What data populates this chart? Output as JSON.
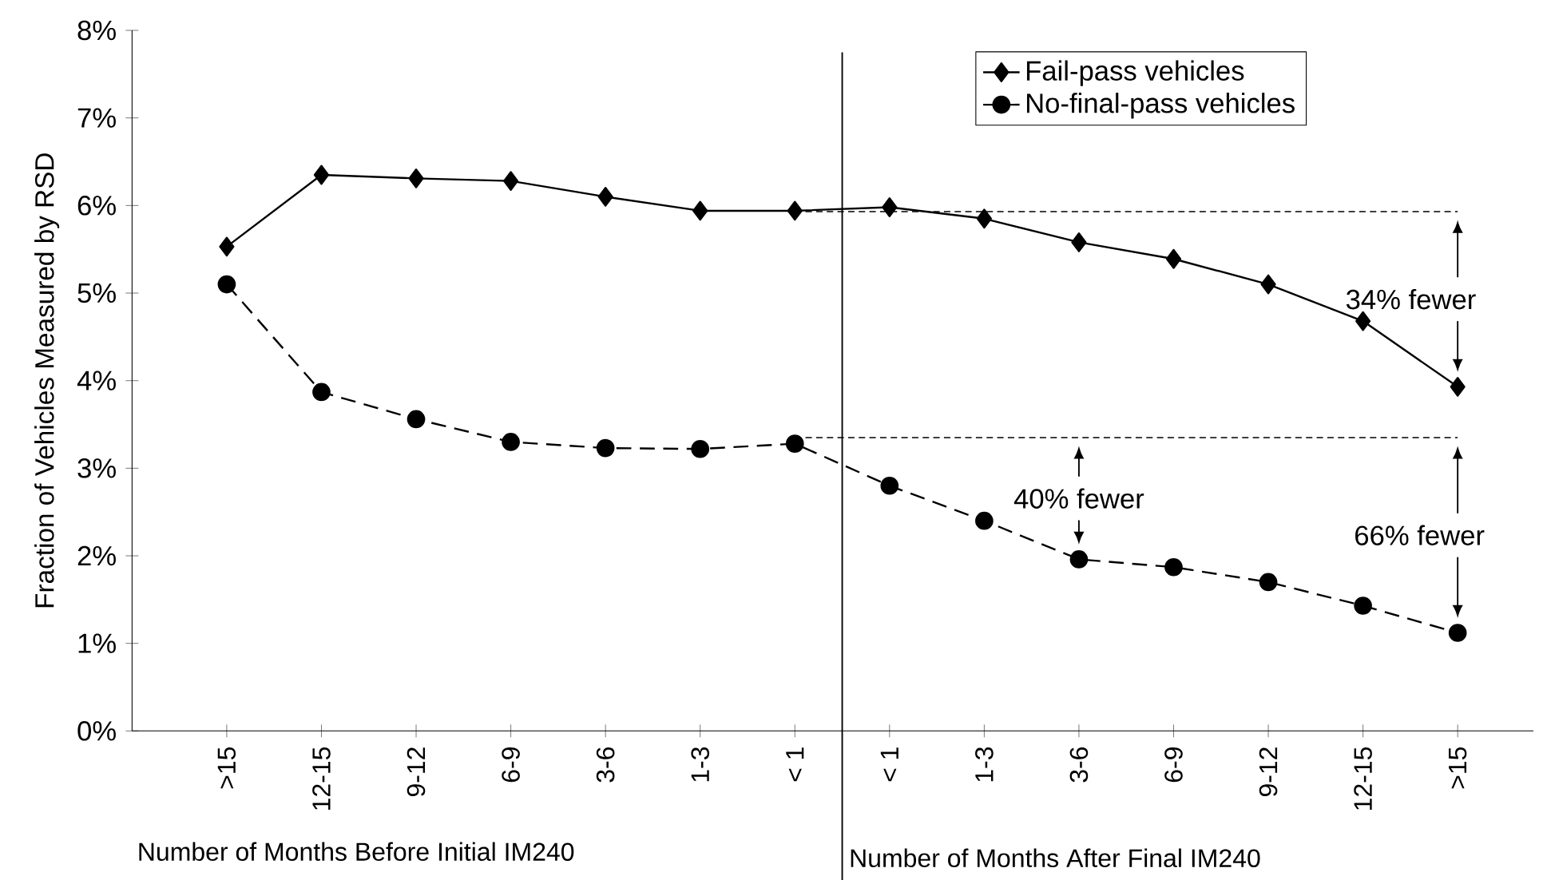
{
  "chart_data": {
    "type": "line",
    "ylabel": "Fraction of Vehicles Measured by RSD",
    "categories": [
      ">15",
      "12-15",
      "9-12",
      "6-9",
      "3-6",
      "1-3",
      "< 1",
      "< 1",
      "1-3",
      "3-6",
      "6-9",
      "9-12",
      "12-15",
      ">15"
    ],
    "series": [
      {
        "name": "Fail-pass vehicles",
        "color": "#000000",
        "marker": "diamond",
        "line_style": "solid",
        "values": [
          5.53,
          6.35,
          6.31,
          6.28,
          6.1,
          5.94,
          5.94,
          5.98,
          5.85,
          5.58,
          5.39,
          5.1,
          4.68,
          3.93
        ]
      },
      {
        "name": "No-final-pass vehicles",
        "color": "#000000",
        "marker": "circle",
        "line_style": "dashed",
        "values": [
          5.1,
          3.87,
          3.56,
          3.3,
          3.23,
          3.22,
          3.28,
          2.8,
          2.4,
          1.96,
          1.87,
          1.7,
          1.43,
          1.12
        ]
      }
    ],
    "ylim": [
      0,
      8
    ],
    "yticks": [
      {
        "value": 0,
        "label": "0%"
      },
      {
        "value": 1,
        "label": "1%"
      },
      {
        "value": 2,
        "label": "2%"
      },
      {
        "value": 3,
        "label": "3%"
      },
      {
        "value": 4,
        "label": "4%"
      },
      {
        "value": 5,
        "label": "5%"
      },
      {
        "value": 6,
        "label": "6%"
      },
      {
        "value": 7,
        "label": "7%"
      },
      {
        "value": 8,
        "label": "8%"
      }
    ],
    "grid": false,
    "legend": "top right",
    "ref_lines": [
      {
        "axis": "y",
        "value": 5.93,
        "line_style": "dashed"
      },
      {
        "axis": "y",
        "value": 3.35,
        "line_style": "dashed"
      }
    ],
    "annotations": [
      "Number of Months Before Initial IM240",
      "Number of Months After Final IM240",
      "34% fewer",
      "40% fewer",
      "66% fewer"
    ]
  }
}
